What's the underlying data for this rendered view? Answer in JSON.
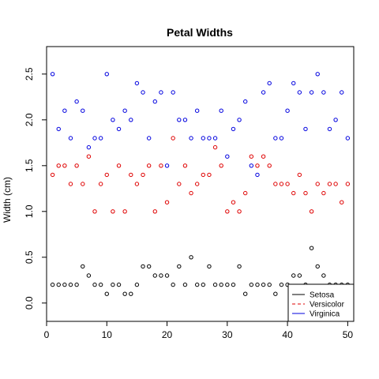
{
  "chart_data": {
    "type": "scatter",
    "title": "Petal Widths",
    "xlabel": "",
    "ylabel": "Width (cm)",
    "xlim": [
      0,
      51
    ],
    "ylim": [
      -0.2,
      2.8
    ],
    "x_ticks": [
      0,
      10,
      20,
      30,
      40,
      50
    ],
    "y_ticks": [
      0.0,
      0.5,
      1.0,
      1.5,
      2.0,
      2.5
    ],
    "x_tick_labels": [
      "0",
      "10",
      "20",
      "30",
      "40",
      "50"
    ],
    "y_tick_labels": [
      "0.0",
      "0.5",
      "1.0",
      "1.5",
      "2.0",
      "2.5"
    ],
    "grid": false,
    "legend_position": "bottom-right",
    "x": [
      1,
      2,
      3,
      4,
      5,
      6,
      7,
      8,
      9,
      10,
      11,
      12,
      13,
      14,
      15,
      16,
      17,
      18,
      19,
      20,
      21,
      22,
      23,
      24,
      25,
      26,
      27,
      28,
      29,
      30,
      31,
      32,
      33,
      34,
      35,
      36,
      37,
      38,
      39,
      40,
      41,
      42,
      43,
      44,
      45,
      46,
      47,
      48,
      49,
      50
    ],
    "series": [
      {
        "name": "Setosa",
        "color": "#000000",
        "line_style": "solid",
        "values": [
          0.2,
          0.2,
          0.2,
          0.2,
          0.2,
          0.4,
          0.3,
          0.2,
          0.2,
          0.1,
          0.2,
          0.2,
          0.1,
          0.1,
          0.2,
          0.4,
          0.4,
          0.3,
          0.3,
          0.3,
          0.2,
          0.4,
          0.2,
          0.5,
          0.2,
          0.2,
          0.4,
          0.2,
          0.2,
          0.2,
          0.2,
          0.4,
          0.1,
          0.2,
          0.2,
          0.2,
          0.2,
          0.1,
          0.2,
          0.2,
          0.3,
          0.3,
          0.2,
          0.6,
          0.4,
          0.3,
          0.2,
          0.2,
          0.2,
          0.2
        ]
      },
      {
        "name": "Versicolor",
        "color": "#df0000",
        "line_style": "dashed",
        "values": [
          1.4,
          1.5,
          1.5,
          1.3,
          1.5,
          1.3,
          1.6,
          1.0,
          1.3,
          1.4,
          1.0,
          1.5,
          1.0,
          1.4,
          1.3,
          1.4,
          1.5,
          1.0,
          1.5,
          1.1,
          1.8,
          1.3,
          1.5,
          1.2,
          1.3,
          1.4,
          1.4,
          1.7,
          1.5,
          1.0,
          1.1,
          1.0,
          1.2,
          1.6,
          1.5,
          1.6,
          1.5,
          1.3,
          1.3,
          1.3,
          1.2,
          1.4,
          1.2,
          1.0,
          1.3,
          1.2,
          1.3,
          1.3,
          1.1,
          1.3
        ]
      },
      {
        "name": "Virginica",
        "color": "#0000df",
        "line_style": "solid",
        "values": [
          2.5,
          1.9,
          2.1,
          1.8,
          2.2,
          2.1,
          1.7,
          1.8,
          1.8,
          2.5,
          2.0,
          1.9,
          2.1,
          2.0,
          2.4,
          2.3,
          1.8,
          2.2,
          2.3,
          1.5,
          2.3,
          2.0,
          2.0,
          1.8,
          2.1,
          1.8,
          1.8,
          1.8,
          2.1,
          1.6,
          1.9,
          2.0,
          2.2,
          1.5,
          1.4,
          2.3,
          2.4,
          1.8,
          1.8,
          2.1,
          2.4,
          2.3,
          1.9,
          2.3,
          2.5,
          2.3,
          1.9,
          2.0,
          2.3,
          1.8
        ]
      }
    ]
  }
}
